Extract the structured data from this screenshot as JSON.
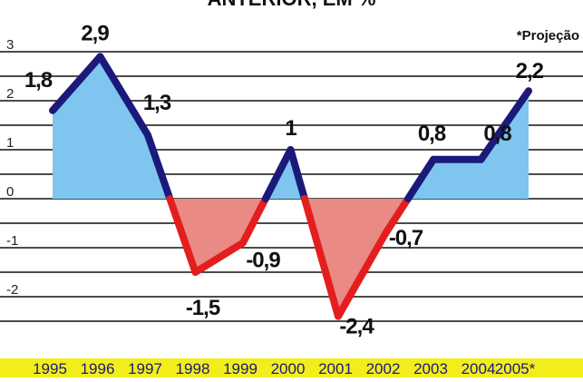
{
  "header": {
    "title": "ANTERIOR, EM %",
    "note": "*Projeção"
  },
  "chart_data": {
    "type": "line",
    "title": "ANTERIOR, EM %",
    "categories": [
      "1995",
      "1996",
      "1997",
      "1998",
      "1999",
      "2000",
      "2001",
      "2002",
      "2003",
      "2004",
      "2005*"
    ],
    "values": [
      1.8,
      2.9,
      1.3,
      -1.5,
      -0.9,
      1,
      -2.4,
      -0.7,
      0.8,
      0.8,
      2.2
    ],
    "value_labels": [
      "1,8",
      "2,9",
      "1,3",
      "-1,5",
      "-0,9",
      "1",
      "-2,4",
      "-0,7",
      "0,8",
      "0,8",
      "2,2"
    ],
    "yticks": [
      3,
      2,
      1,
      0,
      -1,
      -2
    ],
    "ytick_labels": [
      "3",
      "2",
      "1",
      "0",
      "-1",
      "-2"
    ],
    "ylim": [
      -2.85,
      3.3
    ],
    "grid": true,
    "note": "*Projeção",
    "colors": {
      "positive_line": "#1b1a7a",
      "negative_line": "#e41e1e",
      "positive_fill": "#7ec6ef",
      "negative_fill": "#e98a84",
      "axis_band": "#f3ee1b",
      "grid": "#111111"
    }
  }
}
